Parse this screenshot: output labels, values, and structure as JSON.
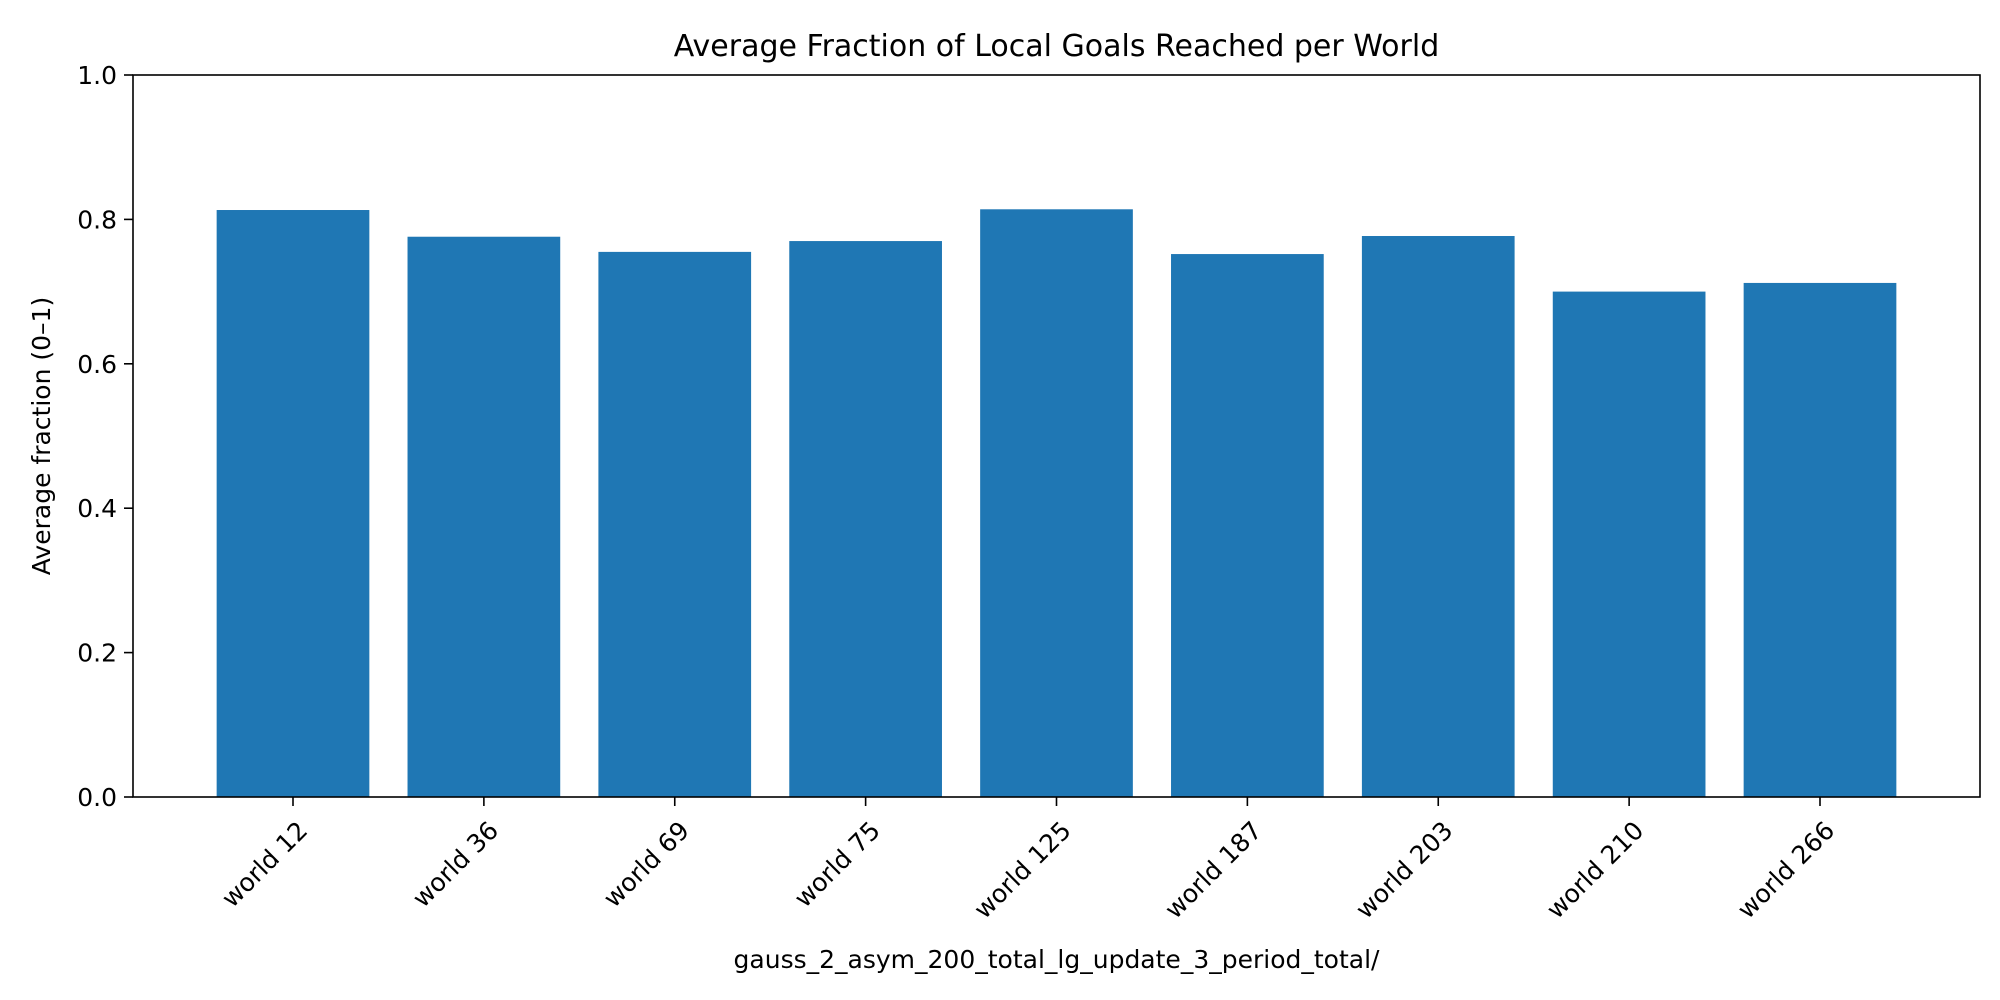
{
  "chart_data": {
    "type": "bar",
    "title": "Average Fraction of Local Goals Reached per World",
    "xlabel": "gauss_2_asym_200_total_lg_update_3_period_total/",
    "ylabel": "Average fraction (0–1)",
    "categories": [
      "world 12",
      "world 36",
      "world 69",
      "world 75",
      "world 125",
      "world 187",
      "world 203",
      "world 210",
      "world 266"
    ],
    "values": [
      0.813,
      0.776,
      0.755,
      0.77,
      0.814,
      0.752,
      0.777,
      0.7,
      0.712
    ],
    "ylim": [
      0,
      1.0
    ],
    "yticks": [
      "0.0",
      "0.2",
      "0.4",
      "0.6",
      "0.8",
      "1.0"
    ],
    "grid": false,
    "bar_color": "#1f77b4",
    "axis_color": "#000000"
  }
}
